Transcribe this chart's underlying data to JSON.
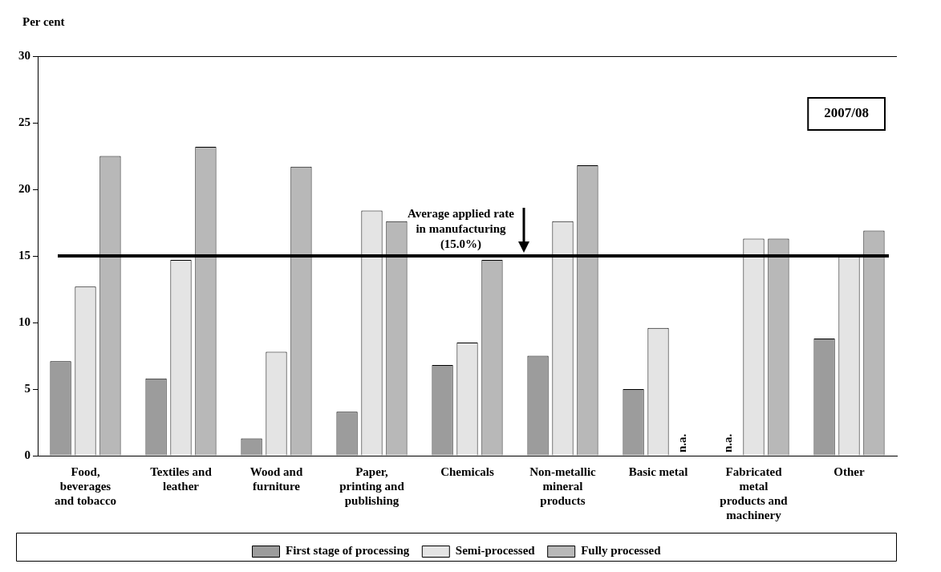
{
  "chart_data": {
    "type": "bar",
    "ylabel": "Per cent",
    "categories": [
      "Food, beverages and tobacco",
      "Textiles and leather",
      "Wood and furniture",
      "Paper, printing and publishing",
      "Chemicals",
      "Non-metallic mineral products",
      "Basic metal",
      "Fabricated metal products and machinery",
      "Other"
    ],
    "series": [
      {
        "name": "First stage of processing",
        "color": "#9c9c9c",
        "values": [
          7.1,
          5.8,
          1.3,
          3.3,
          6.8,
          7.5,
          5.0,
          null,
          8.8
        ]
      },
      {
        "name": "Semi-processed",
        "color": "#e4e4e4",
        "values": [
          12.7,
          14.7,
          7.8,
          18.4,
          8.5,
          17.6,
          9.6,
          16.3,
          15.0
        ]
      },
      {
        "name": "Fully processed",
        "color": "#b8b8b8",
        "values": [
          22.5,
          23.2,
          21.7,
          17.6,
          14.7,
          21.8,
          null,
          16.3,
          16.9
        ]
      }
    ],
    "ylim": [
      0,
      30
    ],
    "yticks": [
      0,
      5,
      10,
      15,
      20,
      25,
      30
    ],
    "grid": false,
    "legend": "bottom",
    "ref_lines": [
      {
        "axis": "y",
        "value": 15,
        "label": "Average applied rate in manufacturing (15.0%)",
        "color": "#000000"
      }
    ],
    "annotations": [
      "2007/08",
      {
        "text": "n.a.",
        "x": "Basic metal",
        "y": 0
      },
      {
        "text": "n.a.",
        "x": "Fabricated metal products and machinery",
        "y": 0
      }
    ]
  }
}
